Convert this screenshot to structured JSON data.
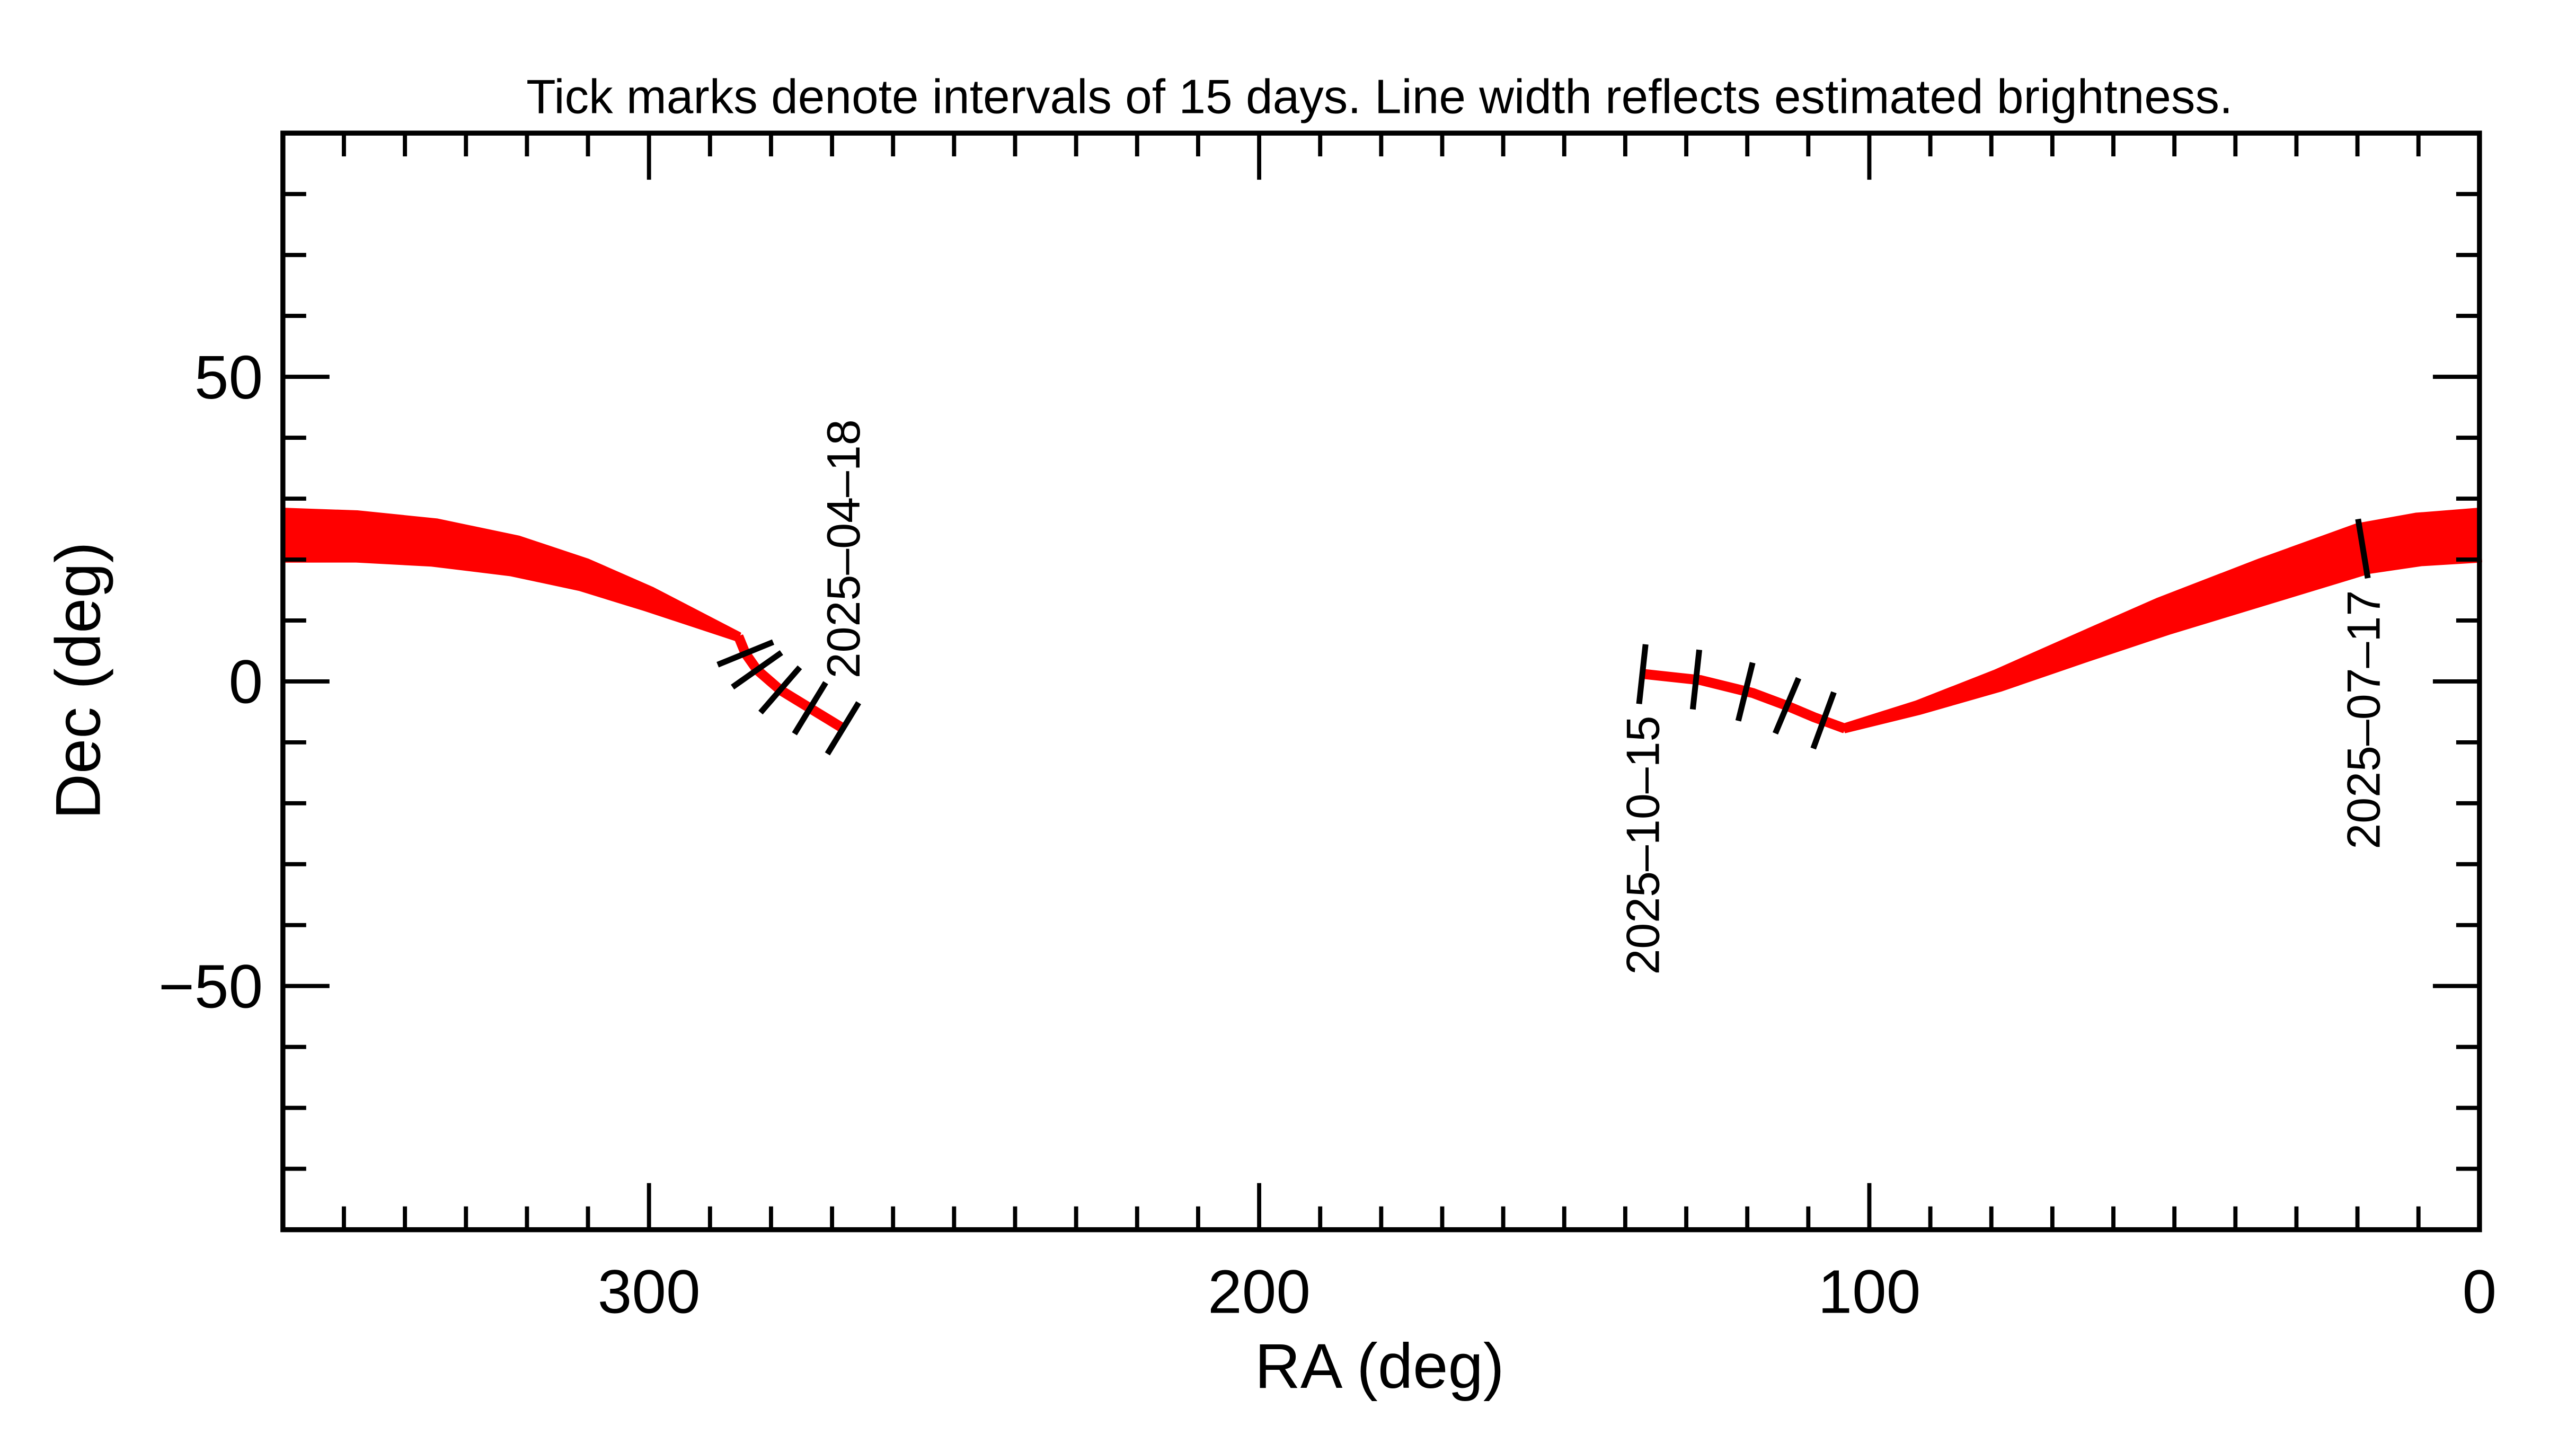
{
  "chart_data": {
    "type": "line",
    "title": "Tick marks denote intervals of 15 days.  Line width reflects estimated brightness.",
    "xlabel": "RA (deg)",
    "ylabel": "Dec (deg)",
    "xlim": [
      360,
      0
    ],
    "ylim": [
      -90,
      90
    ],
    "x_major_ticks": [
      300,
      200,
      100,
      0
    ],
    "x_tick_labels": [
      "300",
      "200",
      "100",
      "0"
    ],
    "y_major_ticks": [
      50,
      0,
      -50
    ],
    "y_tick_labels": [
      "50",
      "0",
      "−50"
    ],
    "x_minor_step": 10,
    "y_minor_step": 10,
    "grid": false,
    "line_color": "#ff0000",
    "tick_color": "#000000",
    "series": [
      {
        "points": [
          [
            268.2,
            -7.7
          ],
          [
            273.6,
            -4.4
          ],
          [
            278.5,
            -1.4
          ],
          [
            282.3,
            1.9
          ],
          [
            284.2,
            4.6
          ],
          [
            285.3,
            7.3
          ]
        ],
        "relative_width": [
          0.08,
          0.08,
          0.08,
          0.09,
          0.1,
          0.12
        ]
      },
      {
        "points": [
          [
            285.3,
            7.3
          ],
          [
            300,
            13.5
          ],
          [
            310.7,
            17.5
          ],
          [
            322,
            20.6
          ],
          [
            335.2,
            22.8
          ],
          [
            348,
            23.8
          ],
          [
            360,
            24.0
          ]
        ],
        "relative_width": [
          0.12,
          0.45,
          0.6,
          0.75,
          0.88,
          0.95,
          1.0
        ]
      },
      {
        "points": [
          [
            0,
            24.0
          ],
          [
            10,
            23.3
          ],
          [
            19.1,
            21.8
          ],
          [
            35,
            16.5
          ],
          [
            51.8,
            10.7
          ],
          [
            65,
            5.6
          ],
          [
            79,
            0.1
          ],
          [
            92,
            -4.3
          ],
          [
            104.1,
            -7.7
          ]
        ],
        "relative_width": [
          1.0,
          0.98,
          0.95,
          0.85,
          0.7,
          0.55,
          0.4,
          0.25,
          0.12
        ]
      },
      {
        "points": [
          [
            104.1,
            -7.7
          ],
          [
            109,
            -5.9
          ],
          [
            113.5,
            -4.0
          ],
          [
            119.1,
            -1.9
          ],
          [
            127.6,
            0.2
          ],
          [
            136.8,
            1.2
          ]
        ],
        "relative_width": [
          0.1,
          0.09,
          0.08,
          0.08,
          0.08,
          0.08
        ]
      }
    ],
    "interval_ticks": [
      [
        268.2,
        -7.7
      ],
      [
        273.6,
        -4.4
      ],
      [
        278.5,
        -1.4
      ],
      [
        282.3,
        1.9
      ],
      [
        284.2,
        4.6
      ],
      [
        285.3,
        7.3
      ],
      [
        19.1,
        21.8
      ],
      [
        104.6,
        -7.6
      ],
      [
        107.5,
        -6.4
      ],
      [
        113.5,
        -4.0
      ],
      [
        120.3,
        -1.7
      ],
      [
        128.4,
        0.3
      ],
      [
        137.2,
        1.2
      ]
    ],
    "date_labels": [
      {
        "text": "2025–04–18",
        "ra": 268.2,
        "dec": -7.7,
        "side": "above"
      },
      {
        "text": "2025–07–17",
        "ra": 19.1,
        "dec": 21.8,
        "side": "below"
      },
      {
        "text": "2025–10–15",
        "ra": 137.2,
        "dec": 1.2,
        "side": "below"
      }
    ]
  }
}
